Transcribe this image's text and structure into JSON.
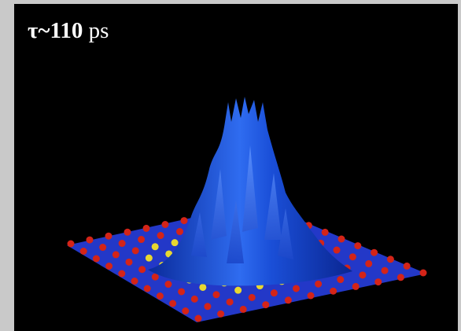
{
  "label": {
    "symbol": "τ~110",
    "unit": "ps"
  }
}
